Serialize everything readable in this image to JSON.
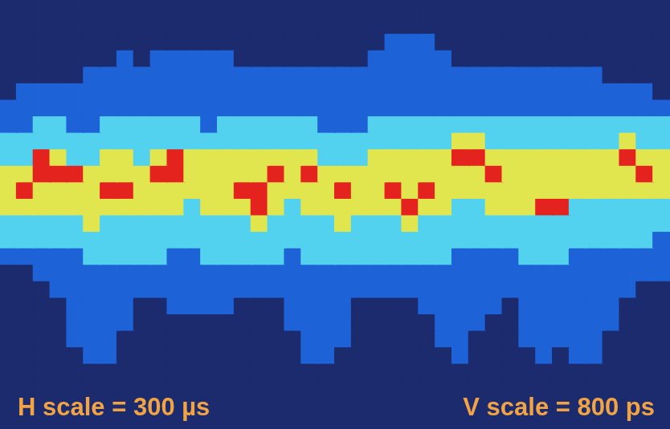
{
  "chart_data": {
    "type": "heatmap",
    "tick_labels": false,
    "colors": [
      "#1b2b6e",
      "#1e62d8",
      "#52d2ef",
      "#e2e64e",
      "#e5231e"
    ],
    "annotations": [
      "H scale = 300 µs",
      "V scale = 800 ps"
    ],
    "cells": [
      [
        0,
        0,
        0,
        0,
        0,
        0,
        0,
        0,
        0,
        0,
        0,
        0,
        0,
        0,
        0,
        0,
        0,
        0,
        0,
        0,
        0,
        0,
        0,
        0,
        0,
        0,
        0,
        0,
        0,
        0,
        0,
        0,
        0,
        0,
        0,
        0,
        0,
        0,
        0,
        0
      ],
      [
        0,
        0,
        0,
        0,
        0,
        0,
        0,
        0,
        0,
        0,
        0,
        0,
        0,
        0,
        0,
        0,
        0,
        0,
        0,
        0,
        0,
        0,
        0,
        0,
        0,
        0,
        0,
        0,
        0,
        0,
        0,
        0,
        0,
        0,
        0,
        0,
        0,
        0,
        0,
        0
      ],
      [
        0,
        0,
        0,
        0,
        0,
        0,
        0,
        0,
        0,
        0,
        0,
        0,
        0,
        0,
        0,
        0,
        0,
        0,
        0,
        0,
        0,
        0,
        0,
        1,
        1,
        1,
        0,
        0,
        0,
        0,
        0,
        0,
        0,
        0,
        0,
        0,
        0,
        0,
        0,
        0
      ],
      [
        0,
        0,
        0,
        0,
        0,
        0,
        0,
        1,
        0,
        1,
        1,
        1,
        1,
        1,
        0,
        0,
        0,
        0,
        0,
        0,
        0,
        0,
        1,
        1,
        1,
        1,
        1,
        0,
        0,
        0,
        0,
        0,
        0,
        0,
        0,
        0,
        0,
        0,
        0,
        0
      ],
      [
        0,
        0,
        0,
        0,
        0,
        1,
        1,
        1,
        1,
        1,
        1,
        1,
        1,
        1,
        1,
        1,
        1,
        1,
        1,
        1,
        1,
        1,
        1,
        1,
        1,
        1,
        1,
        1,
        1,
        1,
        1,
        1,
        1,
        1,
        1,
        1,
        0,
        0,
        0,
        0
      ],
      [
        0,
        1,
        1,
        1,
        1,
        1,
        1,
        1,
        1,
        1,
        1,
        1,
        1,
        1,
        1,
        1,
        1,
        1,
        1,
        1,
        1,
        1,
        1,
        1,
        1,
        1,
        1,
        1,
        1,
        1,
        1,
        1,
        1,
        1,
        1,
        1,
        1,
        1,
        1,
        0
      ],
      [
        1,
        1,
        1,
        1,
        1,
        1,
        1,
        1,
        1,
        1,
        1,
        1,
        1,
        1,
        1,
        1,
        1,
        1,
        1,
        1,
        1,
        1,
        1,
        1,
        1,
        1,
        1,
        1,
        1,
        1,
        1,
        1,
        1,
        1,
        1,
        1,
        1,
        1,
        1,
        1
      ],
      [
        1,
        1,
        2,
        2,
        1,
        1,
        2,
        2,
        2,
        2,
        2,
        2,
        1,
        2,
        2,
        2,
        2,
        2,
        2,
        1,
        1,
        1,
        2,
        2,
        2,
        2,
        2,
        2,
        2,
        2,
        2,
        2,
        2,
        2,
        2,
        2,
        2,
        2,
        2,
        2
      ],
      [
        2,
        2,
        2,
        2,
        2,
        2,
        2,
        2,
        2,
        2,
        2,
        2,
        2,
        2,
        2,
        2,
        2,
        2,
        2,
        2,
        2,
        2,
        2,
        2,
        2,
        2,
        2,
        3,
        3,
        2,
        2,
        2,
        2,
        2,
        2,
        2,
        2,
        3,
        2,
        2
      ],
      [
        2,
        2,
        4,
        3,
        2,
        2,
        3,
        3,
        2,
        3,
        4,
        3,
        3,
        3,
        3,
        3,
        3,
        3,
        3,
        2,
        2,
        2,
        3,
        3,
        3,
        3,
        3,
        4,
        4,
        3,
        3,
        3,
        3,
        3,
        3,
        3,
        3,
        4,
        3,
        3
      ],
      [
        3,
        3,
        4,
        4,
        4,
        3,
        3,
        3,
        3,
        4,
        4,
        3,
        3,
        3,
        3,
        3,
        4,
        3,
        4,
        3,
        3,
        3,
        3,
        3,
        3,
        3,
        3,
        3,
        3,
        4,
        3,
        3,
        3,
        3,
        3,
        3,
        3,
        3,
        4,
        3
      ],
      [
        3,
        4,
        3,
        3,
        3,
        3,
        4,
        4,
        3,
        3,
        3,
        3,
        3,
        3,
        4,
        4,
        3,
        3,
        3,
        3,
        4,
        3,
        3,
        4,
        3,
        4,
        3,
        3,
        3,
        3,
        3,
        3,
        3,
        3,
        3,
        3,
        3,
        3,
        3,
        3
      ],
      [
        3,
        3,
        3,
        3,
        3,
        3,
        3,
        3,
        3,
        3,
        3,
        2,
        3,
        3,
        3,
        4,
        3,
        2,
        3,
        3,
        3,
        3,
        3,
        3,
        4,
        3,
        3,
        2,
        2,
        3,
        3,
        3,
        4,
        4,
        2,
        2,
        2,
        2,
        2,
        2
      ],
      [
        2,
        2,
        2,
        2,
        2,
        3,
        2,
        2,
        2,
        2,
        2,
        2,
        2,
        2,
        2,
        3,
        2,
        2,
        2,
        2,
        3,
        2,
        2,
        2,
        3,
        2,
        2,
        2,
        2,
        2,
        2,
        2,
        2,
        2,
        2,
        2,
        2,
        2,
        2,
        2
      ],
      [
        2,
        2,
        2,
        2,
        2,
        2,
        2,
        2,
        2,
        2,
        2,
        2,
        2,
        2,
        2,
        2,
        2,
        2,
        2,
        2,
        2,
        2,
        2,
        2,
        2,
        2,
        2,
        2,
        2,
        2,
        2,
        2,
        2,
        2,
        2,
        2,
        2,
        2,
        2,
        1
      ],
      [
        1,
        1,
        1,
        1,
        1,
        2,
        2,
        2,
        2,
        2,
        1,
        1,
        2,
        2,
        2,
        2,
        2,
        1,
        2,
        2,
        2,
        2,
        2,
        2,
        2,
        2,
        2,
        1,
        1,
        1,
        1,
        2,
        2,
        2,
        1,
        1,
        1,
        1,
        1,
        1
      ],
      [
        0,
        0,
        1,
        1,
        1,
        1,
        1,
        1,
        1,
        1,
        1,
        1,
        1,
        1,
        1,
        1,
        1,
        1,
        1,
        1,
        1,
        1,
        1,
        1,
        1,
        1,
        1,
        1,
        1,
        1,
        1,
        1,
        1,
        1,
        1,
        1,
        1,
        1,
        1,
        1
      ],
      [
        0,
        0,
        0,
        1,
        1,
        1,
        1,
        1,
        1,
        1,
        1,
        1,
        1,
        1,
        1,
        1,
        1,
        1,
        1,
        1,
        1,
        1,
        1,
        1,
        1,
        1,
        1,
        1,
        1,
        1,
        1,
        1,
        1,
        1,
        1,
        1,
        1,
        1,
        0,
        0
      ],
      [
        0,
        0,
        0,
        0,
        1,
        1,
        1,
        1,
        0,
        0,
        1,
        1,
        1,
        1,
        0,
        0,
        0,
        1,
        1,
        1,
        1,
        0,
        0,
        0,
        0,
        1,
        1,
        1,
        1,
        1,
        0,
        1,
        1,
        1,
        1,
        1,
        1,
        0,
        0,
        0
      ],
      [
        0,
        0,
        0,
        0,
        1,
        1,
        1,
        1,
        0,
        0,
        0,
        0,
        0,
        0,
        0,
        0,
        0,
        1,
        1,
        1,
        1,
        0,
        0,
        0,
        0,
        0,
        1,
        1,
        1,
        0,
        0,
        1,
        1,
        1,
        1,
        1,
        1,
        0,
        0,
        0
      ],
      [
        0,
        0,
        0,
        0,
        1,
        1,
        1,
        0,
        0,
        0,
        0,
        0,
        0,
        0,
        0,
        0,
        0,
        0,
        1,
        1,
        1,
        0,
        0,
        0,
        0,
        0,
        1,
        1,
        0,
        0,
        0,
        1,
        1,
        1,
        1,
        1,
        0,
        0,
        0,
        0
      ],
      [
        0,
        0,
        0,
        0,
        0,
        1,
        1,
        0,
        0,
        0,
        0,
        0,
        0,
        0,
        0,
        0,
        0,
        0,
        1,
        1,
        0,
        0,
        0,
        0,
        0,
        0,
        0,
        1,
        0,
        0,
        0,
        0,
        1,
        0,
        1,
        1,
        0,
        0,
        0,
        0
      ],
      [
        0,
        0,
        0,
        0,
        0,
        0,
        0,
        0,
        0,
        0,
        0,
        0,
        0,
        0,
        0,
        0,
        0,
        0,
        0,
        0,
        0,
        0,
        0,
        0,
        0,
        0,
        0,
        0,
        0,
        0,
        0,
        0,
        0,
        0,
        0,
        0,
        0,
        0,
        0,
        0
      ],
      [
        0,
        0,
        0,
        0,
        0,
        0,
        0,
        0,
        0,
        0,
        0,
        0,
        0,
        0,
        0,
        0,
        0,
        0,
        0,
        0,
        0,
        0,
        0,
        0,
        0,
        0,
        0,
        0,
        0,
        0,
        0,
        0,
        0,
        0,
        0,
        0,
        0,
        0,
        0,
        0
      ],
      [
        0,
        0,
        0,
        0,
        0,
        0,
        0,
        0,
        0,
        0,
        0,
        0,
        0,
        0,
        0,
        0,
        0,
        0,
        0,
        0,
        0,
        0,
        0,
        0,
        0,
        0,
        0,
        0,
        0,
        0,
        0,
        0,
        0,
        0,
        0,
        0,
        0,
        0,
        0,
        0
      ],
      [
        0,
        0,
        0,
        0,
        0,
        0,
        0,
        0,
        0,
        0,
        0,
        0,
        0,
        0,
        0,
        0,
        0,
        0,
        0,
        0,
        0,
        0,
        0,
        0,
        0,
        0,
        0,
        0,
        0,
        0,
        0,
        0,
        0,
        0,
        0,
        0,
        0,
        0,
        0,
        0
      ]
    ]
  }
}
